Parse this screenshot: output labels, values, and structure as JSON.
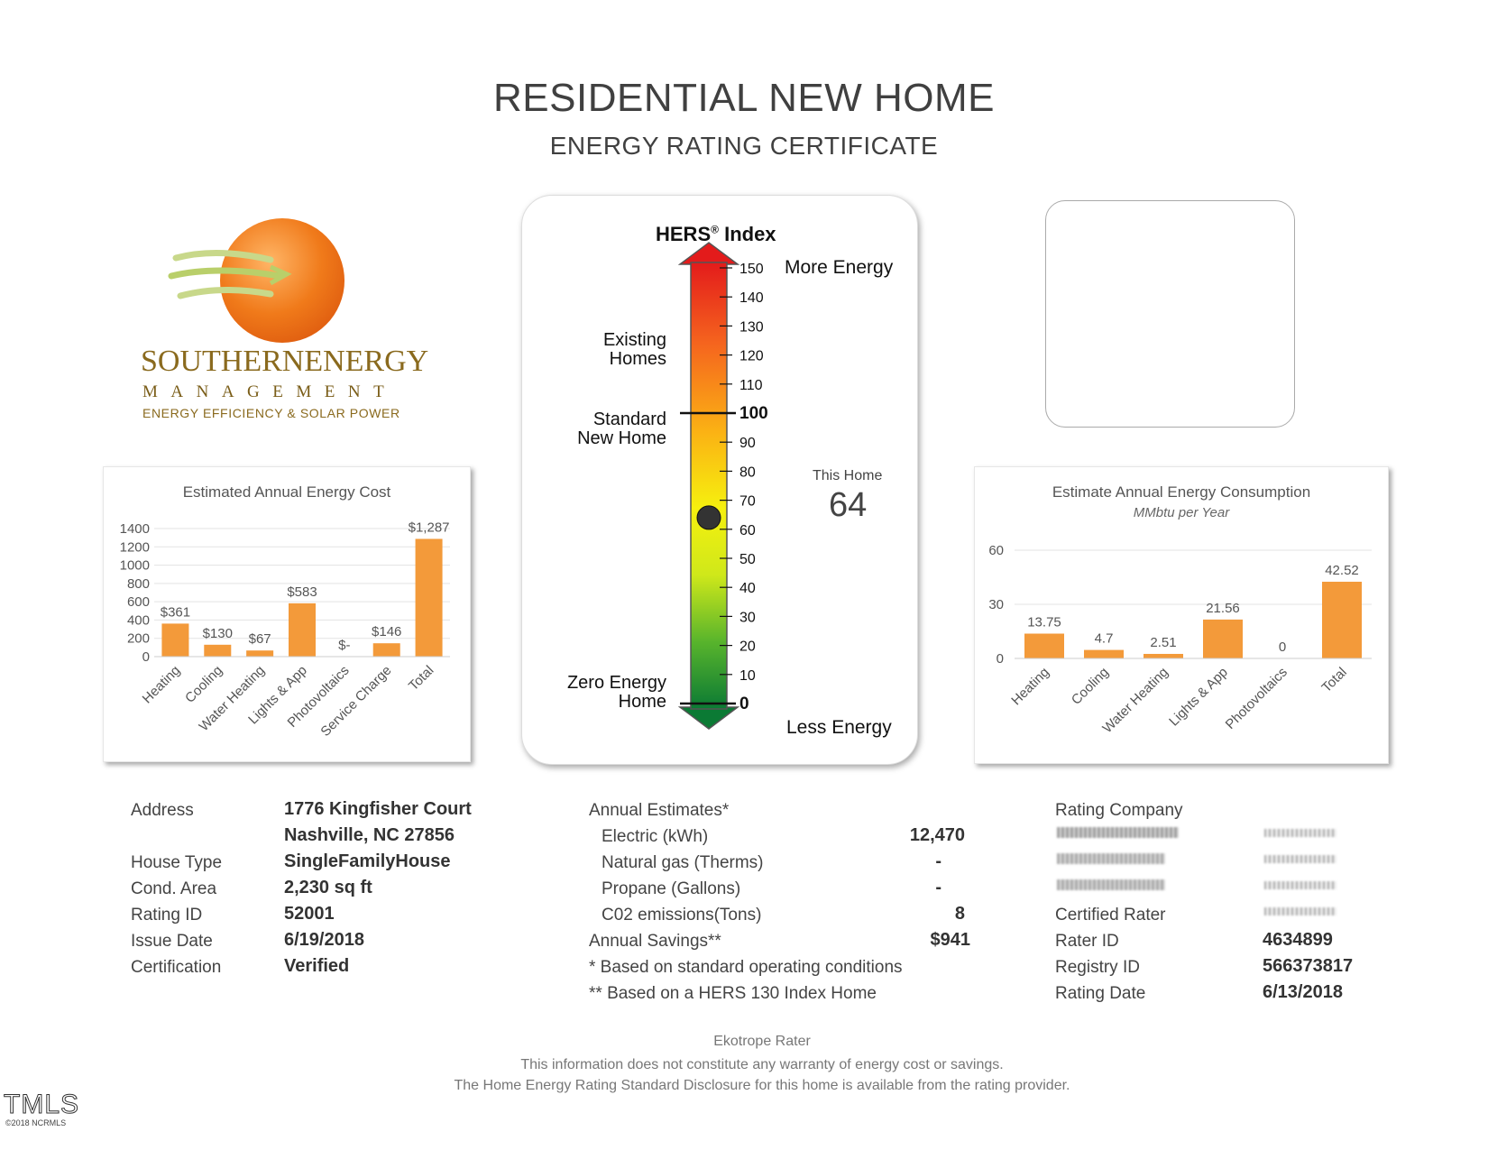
{
  "header": {
    "title": "RESIDENTIAL NEW HOME",
    "subtitle": "ENERGY RATING CERTIFICATE"
  },
  "logo": {
    "line1": "SOUTHERNENERGY",
    "line2": "MANAGEMENT",
    "line3": "ENERGY EFFICIENCY & SOLAR POWER",
    "sun_color": "#f07a1a",
    "text_color": "#8a6a1e"
  },
  "cost_chart": {
    "title": "Estimated Annual Energy Cost",
    "chart_data": {
      "type": "bar",
      "title": "Estimated Annual Energy Cost",
      "categories": [
        "Heating",
        "Cooling",
        "Water Heating",
        "Lights & App",
        "Photovoltaics",
        "Service Charge",
        "Total"
      ],
      "values": [
        361,
        130,
        67,
        583,
        0,
        146,
        1287
      ],
      "data_labels": [
        "$361",
        "$130",
        "$67",
        "$583",
        "$-",
        "$146",
        "$1,287"
      ],
      "yticks": [
        "0",
        "200",
        "400",
        "600",
        "800",
        "1000",
        "1200",
        "1400"
      ],
      "ylim": [
        0,
        1400
      ],
      "bar_color": "#f39a3a"
    }
  },
  "consumption_chart": {
    "title": "Estimate Annual Energy Consumption",
    "subtitle": "MMbtu per Year",
    "chart_data": {
      "type": "bar",
      "title": "Estimate Annual Energy Consumption",
      "subtitle": "MMbtu per Year",
      "categories": [
        "Heating",
        "Cooling",
        "Water Heating",
        "Lights & App",
        "Photovoltaics",
        "Total"
      ],
      "values": [
        13.75,
        4.7,
        2.51,
        21.56,
        0,
        42.52
      ],
      "data_labels": [
        "13.75",
        "4.7",
        "2.51",
        "21.56",
        "0",
        "42.52"
      ],
      "yticks": [
        "0",
        "30",
        "60"
      ],
      "ylim": [
        0,
        60
      ],
      "bar_color": "#f39a3a"
    }
  },
  "hers": {
    "title": "HERS",
    "reg": "®",
    "title_suffix": " Index",
    "more_energy": "More Energy",
    "less_energy": "Less Energy",
    "existing_homes": [
      "Existing",
      "Homes"
    ],
    "standard_new_home": [
      "Standard",
      "New Home"
    ],
    "zero_energy_home": [
      "Zero Energy",
      "Home"
    ],
    "this_home_label": "This Home",
    "this_home_value": "64",
    "score": 64,
    "scale_max": 150,
    "ticks": [
      "0",
      "10",
      "20",
      "30",
      "40",
      "50",
      "60",
      "70",
      "80",
      "90",
      "100",
      "110",
      "120",
      "130",
      "140",
      "150"
    ]
  },
  "property": {
    "address_label": "Address",
    "address_line1": "1776 Kingfisher Court",
    "address_line2": "Nashville, NC 27856",
    "house_type_label": "House Type",
    "house_type": "SingleFamilyHouse",
    "cond_area_label": "Cond. Area",
    "cond_area": "2,230 sq ft",
    "rating_id_label": "Rating ID",
    "rating_id": "52001",
    "issue_date_label": "Issue Date",
    "issue_date": "6/19/2018",
    "certification_label": "Certification",
    "certification": "Verified"
  },
  "estimates": {
    "heading": "Annual Estimates*",
    "electric_label": "Electric (kWh)",
    "electric": "12,470",
    "gas_label": "Natural gas (Therms)",
    "gas": "-",
    "propane_label": "Propane (Gallons)",
    "propane": "-",
    "co2_label": "C02 emissions(Tons)",
    "co2": "8",
    "savings_label": "Annual Savings**",
    "savings": "$941",
    "note1": "* Based on standard operating conditions",
    "note2": "** Based on a HERS 130 Index Home"
  },
  "rater": {
    "company_label": "Rating Company",
    "certified_rater_label": "Certified Rater",
    "rater_id_label": "Rater ID",
    "rater_id": "4634899",
    "registry_id_label": "Registry ID",
    "registry_id": "566373817",
    "rating_date_label": "Rating Date",
    "rating_date": "6/13/2018"
  },
  "footer": {
    "line1": "Ekotrope Rater",
    "line2": "This information does not constitute any warranty of energy cost or savings.",
    "line3": "The Home Energy Rating Standard Disclosure for this home is available from the rating provider."
  },
  "watermark": {
    "mark": "TMLS",
    "copyright": "©2018 NCRMLS"
  }
}
